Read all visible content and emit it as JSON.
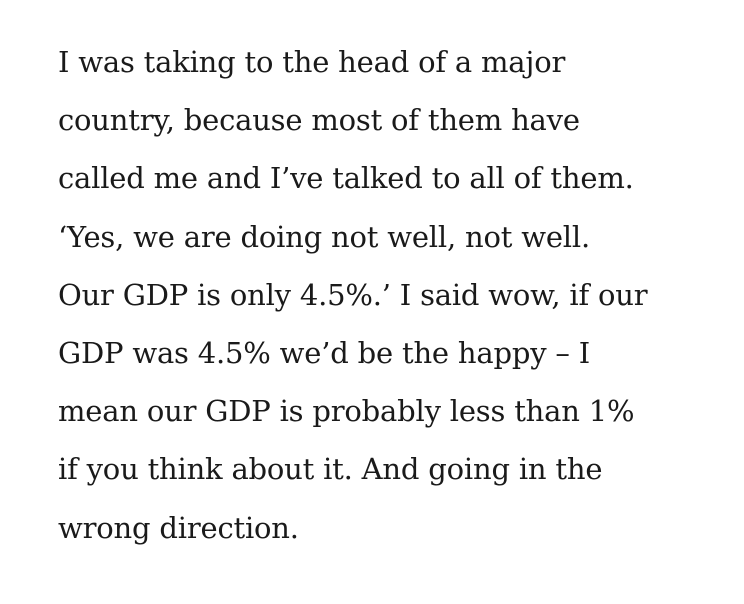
{
  "document": {
    "lines": [
      "I was taking to the head of a major",
      "country, because most of them have",
      "called me and I’ve talked to all of them.",
      "‘Yes, we are doing not well, not well.",
      "Our GDP is only 4.5%.’ I said wow, if our",
      "GDP was 4.5% we’d be the happy – I",
      "mean our GDP is probably less than 1%",
      "if you think about it. And going in the",
      "wrong direction."
    ]
  }
}
